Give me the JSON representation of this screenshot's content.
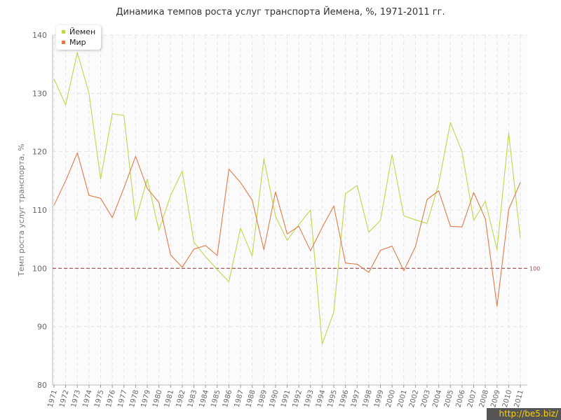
{
  "chart_data": {
    "type": "line",
    "title": "Динамика темпов роста услуг транспорта Йемена, %, 1971-2011 гг.",
    "xlabel": "",
    "ylabel": "Темп роста услуг транспорта, %",
    "ylim": [
      80,
      140
    ],
    "yticks": [
      80,
      90,
      100,
      110,
      120,
      130,
      140
    ],
    "grid": true,
    "legend_position": "top-left",
    "x": [
      "1971",
      "1972",
      "1973",
      "1974",
      "1975",
      "1976",
      "1977",
      "1978",
      "1979",
      "1980",
      "1981",
      "1982",
      "1983",
      "1984",
      "1985",
      "1986",
      "1987",
      "1988",
      "1989",
      "1990",
      "1991",
      "1992",
      "1993",
      "1994",
      "1995",
      "1996",
      "1997",
      "1998",
      "1999",
      "2000",
      "2001",
      "2002",
      "2003",
      "2004",
      "2005",
      "2006",
      "2007",
      "2008",
      "2009",
      "2010",
      "2011"
    ],
    "series": [
      {
        "name": "Йемен",
        "color": "#bcd94a",
        "values": [
          132.5,
          128,
          137,
          130,
          115.3,
          126.5,
          126.2,
          108.2,
          115.3,
          106.5,
          112.5,
          116.7,
          104.5,
          102,
          99.8,
          97.7,
          106.9,
          102.1,
          118.8,
          108.9,
          104.8,
          107.5,
          110,
          87,
          92.5,
          112.8,
          114.2,
          106.2,
          108.2,
          119.5,
          109,
          108.3,
          107.7,
          114.5,
          125,
          120,
          108.2,
          111.5,
          103.2,
          123.2,
          105.2
        ]
      },
      {
        "name": "Мир",
        "color": "#e07b4a",
        "values": [
          110.8,
          115,
          119.8,
          112.5,
          112,
          108.7,
          113.8,
          119.2,
          113.7,
          111.3,
          102.3,
          100.2,
          103.3,
          103.9,
          102.2,
          117,
          114.7,
          111.7,
          103.2,
          113.1,
          105.9,
          107.2,
          103,
          107,
          110.7,
          100.9,
          100.7,
          99.3,
          103.1,
          103.8,
          99.6,
          103.7,
          111.8,
          113.3,
          107.2,
          107.1,
          113,
          108.5,
          93.5,
          110.1,
          114.7
        ]
      }
    ],
    "reference_line": {
      "value": 100,
      "label": "100",
      "color": "#a0444c"
    }
  },
  "watermark": "http://be5.biz/"
}
